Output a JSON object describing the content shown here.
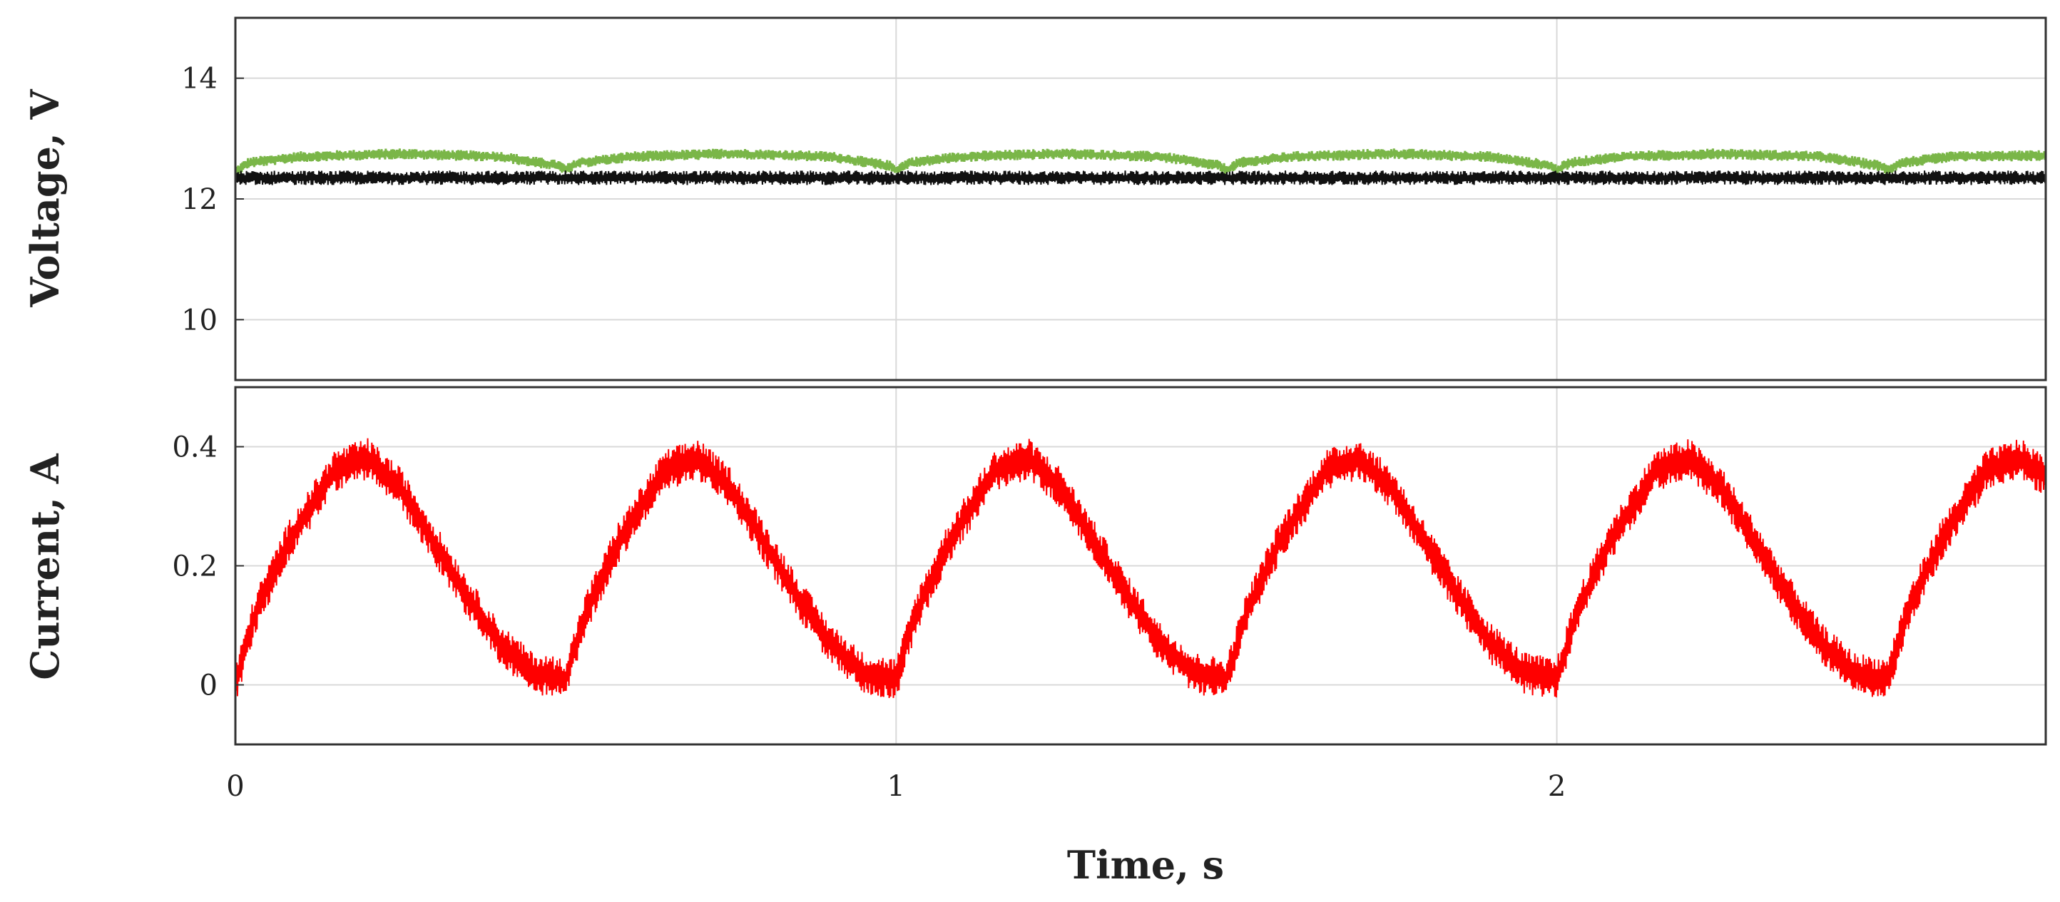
{
  "chart_data": [
    {
      "type": "line",
      "panel": "top",
      "title": "",
      "xlabel": "",
      "ylabel": "Voltage, V",
      "xlim": [
        0,
        2.74
      ],
      "ylim": [
        9,
        15
      ],
      "x_ticks": [
        0,
        1,
        2
      ],
      "y_ticks": [
        10,
        12,
        14
      ],
      "y_tick_labels": [
        "10",
        "12",
        "14"
      ],
      "grid": true,
      "legend": "none",
      "series": [
        {
          "color": "#7ab648",
          "x": [
            0,
            0.02,
            0.1,
            0.25,
            0.4,
            0.49,
            0.5,
            0.52,
            0.6,
            0.75,
            0.9,
            0.99,
            1.0,
            1.02,
            1.1,
            1.25,
            1.4,
            1.49,
            1.5,
            1.52,
            1.6,
            1.75,
            1.9,
            1.99,
            2.0,
            2.02,
            2.1,
            2.25,
            2.4,
            2.49,
            2.5,
            2.52,
            2.6,
            2.74
          ],
          "y": [
            12.45,
            12.6,
            12.7,
            12.75,
            12.7,
            12.55,
            12.48,
            12.6,
            12.7,
            12.75,
            12.7,
            12.55,
            12.48,
            12.6,
            12.7,
            12.75,
            12.7,
            12.55,
            12.48,
            12.6,
            12.7,
            12.75,
            12.7,
            12.55,
            12.48,
            12.6,
            12.7,
            12.75,
            12.7,
            12.55,
            12.48,
            12.6,
            12.7,
            12.72
          ]
        },
        {
          "color": "#111111",
          "x": [
            0,
            0.5,
            1.0,
            1.5,
            2.0,
            2.5,
            2.74
          ],
          "y": [
            12.35,
            12.35,
            12.35,
            12.35,
            12.35,
            12.35,
            12.35
          ]
        }
      ]
    },
    {
      "type": "line",
      "panel": "bottom",
      "title": "",
      "xlabel": "Time, s",
      "ylabel": "Current, A",
      "xlim": [
        0,
        2.74
      ],
      "ylim": [
        -0.1,
        0.5
      ],
      "x_ticks": [
        0,
        1,
        2
      ],
      "x_tick_labels": [
        "0",
        "1",
        "2"
      ],
      "y_ticks": [
        0,
        0.2,
        0.4
      ],
      "y_tick_labels": [
        "0",
        "0.2",
        "0.4"
      ],
      "grid": true,
      "legend": "none",
      "series": [
        {
          "color": "#ff0000",
          "x": [
            0,
            0.03,
            0.08,
            0.15,
            0.2,
            0.25,
            0.3,
            0.35,
            0.4,
            0.45,
            0.5,
            0.53,
            0.58,
            0.65,
            0.7,
            0.75,
            0.8,
            0.85,
            0.9,
            0.95,
            1.0,
            1.03,
            1.08,
            1.15,
            1.2,
            1.25,
            1.3,
            1.35,
            1.4,
            1.45,
            1.5,
            1.53,
            1.58,
            1.65,
            1.7,
            1.75,
            1.8,
            1.85,
            1.9,
            1.95,
            2.0,
            2.03,
            2.08,
            2.15,
            2.2,
            2.25,
            2.3,
            2.35,
            2.4,
            2.45,
            2.5,
            2.53,
            2.58,
            2.65,
            2.7,
            2.74
          ],
          "y": [
            0.0,
            0.12,
            0.24,
            0.36,
            0.38,
            0.33,
            0.24,
            0.15,
            0.07,
            0.02,
            0.01,
            0.12,
            0.24,
            0.36,
            0.38,
            0.33,
            0.24,
            0.15,
            0.07,
            0.02,
            0.01,
            0.12,
            0.24,
            0.36,
            0.38,
            0.33,
            0.24,
            0.15,
            0.07,
            0.02,
            0.01,
            0.12,
            0.24,
            0.36,
            0.38,
            0.33,
            0.24,
            0.15,
            0.07,
            0.02,
            0.01,
            0.12,
            0.24,
            0.36,
            0.38,
            0.33,
            0.24,
            0.15,
            0.07,
            0.02,
            0.01,
            0.12,
            0.24,
            0.36,
            0.38,
            0.35
          ]
        }
      ]
    }
  ]
}
